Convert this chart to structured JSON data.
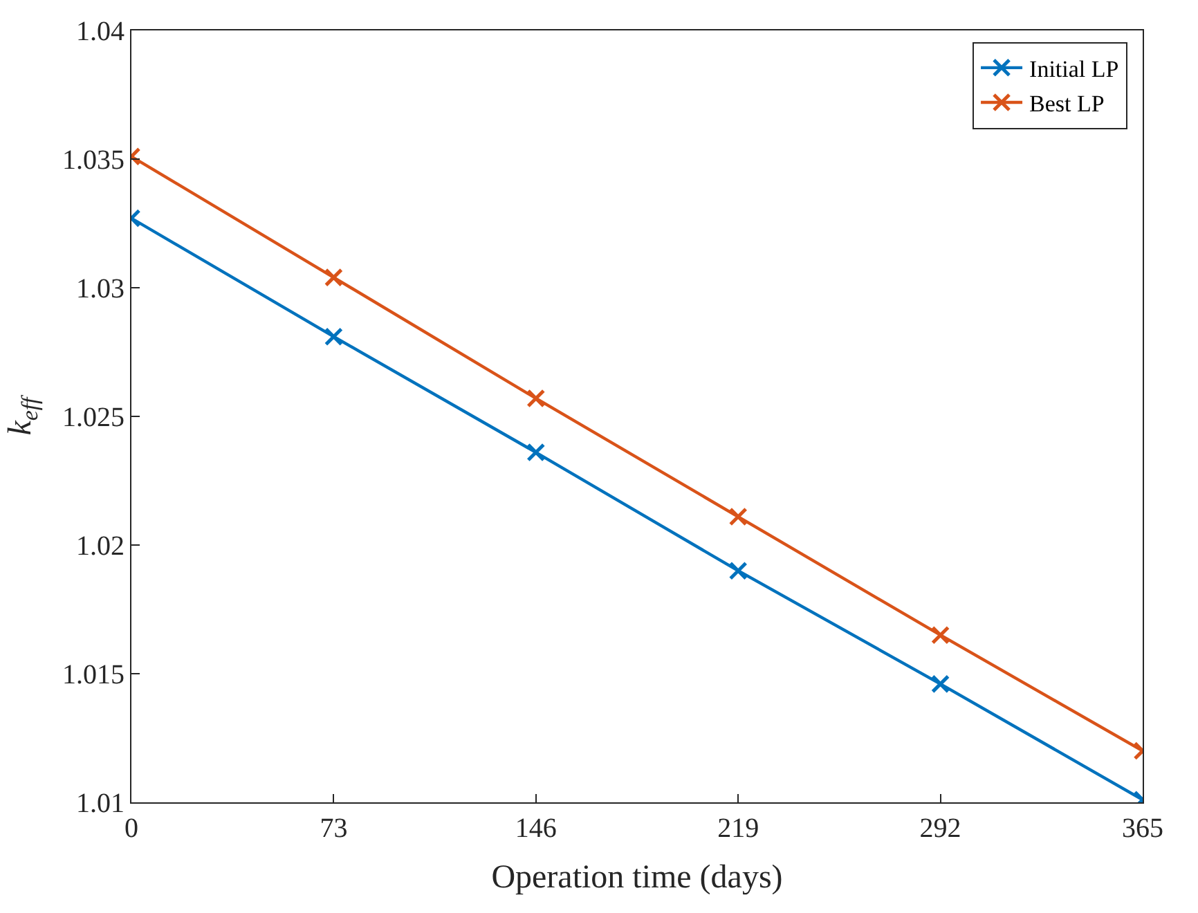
{
  "chart_data": {
    "type": "line",
    "xlabel": "Operation time (days)",
    "ylabel": "k$_{eff}$",
    "x": [
      0,
      73,
      146,
      219,
      292,
      365
    ],
    "series": [
      {
        "name": "Initial LP",
        "color": "#0072bd",
        "values": [
          1.0327,
          1.0281,
          1.0236,
          1.019,
          1.0146,
          1.0101
        ]
      },
      {
        "name": "Best LP",
        "color": "#d95319",
        "values": [
          1.0351,
          1.0304,
          1.0257,
          1.0211,
          1.0165,
          1.012
        ]
      }
    ],
    "xlim": [
      0,
      365
    ],
    "xticks": [
      0,
      73,
      146,
      219,
      292,
      365
    ],
    "ylim": [
      1.01,
      1.04
    ],
    "yticks": [
      1.01,
      1.015,
      1.02,
      1.025,
      1.03,
      1.035,
      1.04
    ],
    "legend": "top right",
    "marker": "cross",
    "line_style": "solid"
  }
}
